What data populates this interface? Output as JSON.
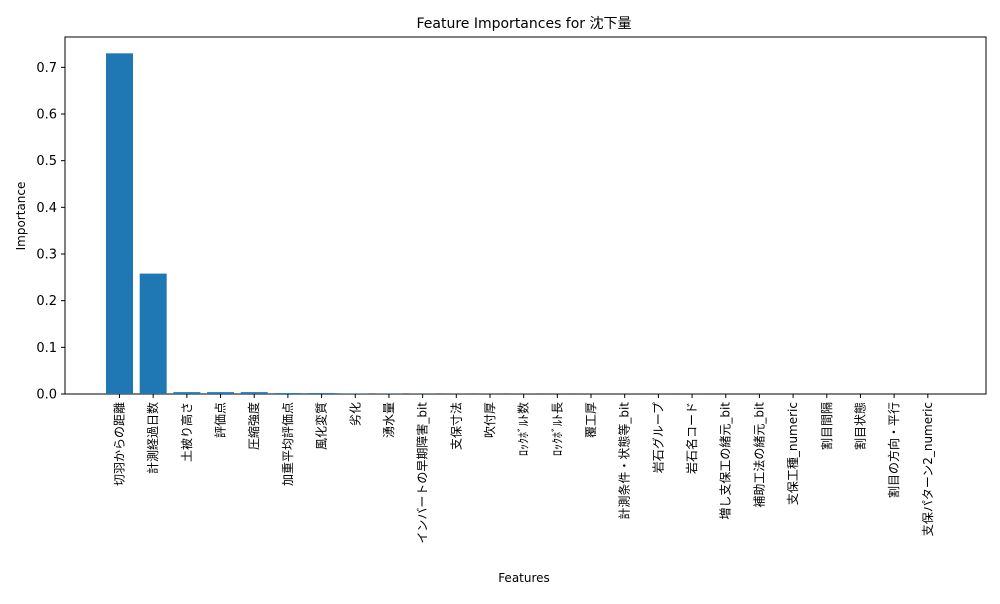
{
  "chart_data": {
    "type": "bar",
    "title": "Feature Importances for 沈下量",
    "xlabel": "Features",
    "ylabel": "Importance",
    "ylim": [
      0,
      0.765
    ],
    "yticks": [
      0.0,
      0.1,
      0.2,
      0.3,
      0.4,
      0.5,
      0.6,
      0.7
    ],
    "ytick_labels": [
      "0.0",
      "0.1",
      "0.2",
      "0.3",
      "0.4",
      "0.5",
      "0.6",
      "0.7"
    ],
    "categories": [
      "切羽からの距離",
      "計測経過日数",
      "土被り高さ",
      "評価点",
      "圧縮強度",
      "加重平均評価点",
      "風化変質",
      "劣化",
      "湧水量",
      "インバートの早期障害_bit",
      "支保寸法",
      "吹付厚",
      "ﾛｯｸﾎﾞﾙﾄ数",
      "ﾛｯｸﾎﾞﾙﾄ長",
      "覆工厚",
      "計測条件・状態等_bit",
      "岩石グループ",
      "岩石名コード",
      "増し支保工の緒元_bit",
      "補助工法の緒元_bit",
      "支保工種_numeric",
      "割目間隔",
      "割目状態",
      "割目の方向・平行",
      "支保パターン2_numeric"
    ],
    "values": [
      0.73,
      0.258,
      0.004,
      0.004,
      0.004,
      0.002,
      0.002,
      0.0005,
      0.0004,
      0.0003,
      0.0002,
      0.0002,
      0.0002,
      0.0001,
      0.0001,
      0.0001,
      0.0001,
      0.0001,
      0.0,
      0.0,
      0.0,
      0.0,
      0.0,
      0.0,
      0.0
    ],
    "bar_color": "#1f77b4",
    "grid": false,
    "legend": "none"
  }
}
